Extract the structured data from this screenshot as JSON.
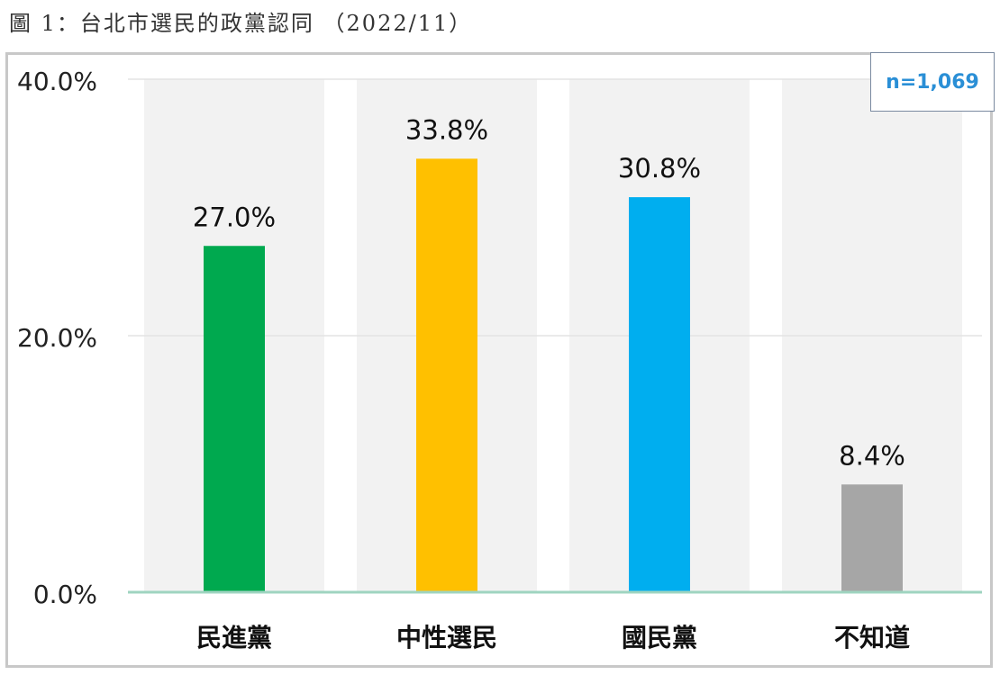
{
  "figure": {
    "caption": "圖 1：台北市選民的政黨認同 （2022/11）"
  },
  "sample_badge": "n=1,069",
  "chart_data": {
    "type": "bar",
    "title": "",
    "xlabel": "",
    "ylabel": "",
    "categories": [
      "民進黨",
      "中性選民",
      "國民黨",
      "不知道"
    ],
    "values": [
      27.0,
      33.8,
      30.8,
      8.4
    ],
    "value_labels": [
      "27.0%",
      "33.8%",
      "30.8%",
      "8.4%"
    ],
    "bar_colors": [
      "#00a94f",
      "#ffc000",
      "#00aeef",
      "#a6a6a6"
    ],
    "background_column_color": "#f2f2f2",
    "ylim": [
      0,
      40
    ],
    "yticks": [
      0,
      20,
      40
    ],
    "ytick_labels": [
      "0.0%",
      "20.0%",
      "40.0%"
    ],
    "grid": true,
    "baseline_color": "#9fd4c0"
  }
}
